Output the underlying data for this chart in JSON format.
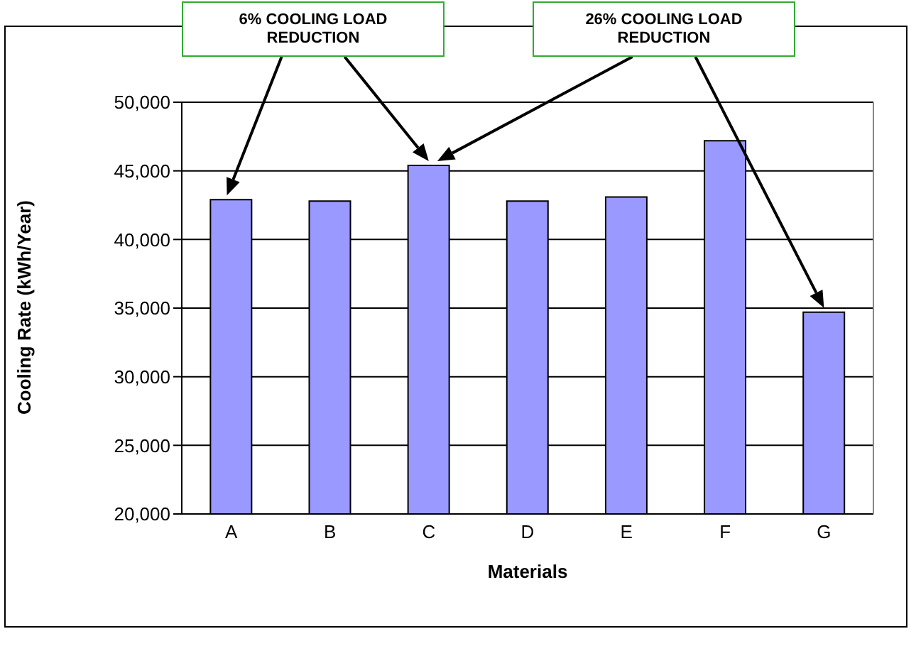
{
  "chart_data": {
    "type": "bar",
    "xlabel": "Materials",
    "ylabel": "Cooling Rate (kWh/Year)",
    "categories": [
      "A",
      "B",
      "C",
      "D",
      "E",
      "F",
      "G"
    ],
    "values": [
      42900,
      42800,
      45400,
      42800,
      43100,
      47200,
      34700
    ],
    "color": "#9999ff",
    "ylim": [
      20000,
      50000
    ],
    "yticks": [
      {
        "value": 20000,
        "label": "20,000"
      },
      {
        "value": 25000,
        "label": "25,000"
      },
      {
        "value": 30000,
        "label": "30,000"
      },
      {
        "value": 35000,
        "label": "35,000"
      },
      {
        "value": 40000,
        "label": "40,000"
      },
      {
        "value": 45000,
        "label": "45,000"
      },
      {
        "value": 50000,
        "label": "50,000"
      }
    ],
    "grid": "y",
    "annotations": [
      "6% COOLING LOAD REDUCTION",
      "26% COOLING LOAD REDUCTION"
    ]
  }
}
